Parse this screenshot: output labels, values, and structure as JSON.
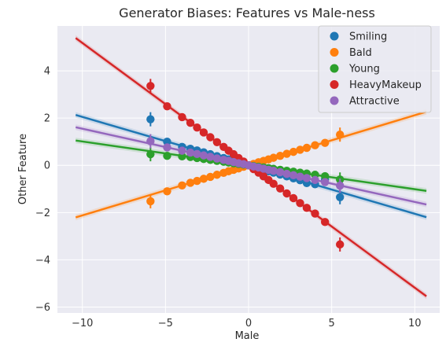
{
  "chart_data": {
    "type": "scatter",
    "title": "Generator Biases: Features vs Male-ness",
    "xlabel": "Male",
    "ylabel": "Other Feature",
    "xlim": [
      -11.5,
      11.5
    ],
    "ylim": [
      -6.25,
      5.9
    ],
    "xticks": [
      -10,
      -5,
      0,
      5,
      10
    ],
    "xtick_labels": [
      "−10",
      "−5",
      "0",
      "5",
      "10"
    ],
    "yticks": [
      -6,
      -4,
      -2,
      0,
      2,
      4
    ],
    "ytick_labels": [
      "−6",
      "−4",
      "−2",
      "0",
      "2",
      "4"
    ],
    "grid": true,
    "legend_position": "top-right",
    "x_points": [
      -5.9,
      -4.9,
      -4.0,
      -3.5,
      -3.1,
      -2.7,
      -2.3,
      -1.9,
      -1.5,
      -1.2,
      -0.9,
      -0.6,
      -0.3,
      0.0,
      0.3,
      0.6,
      0.9,
      1.2,
      1.5,
      1.9,
      2.3,
      2.7,
      3.1,
      3.5,
      4.0,
      4.6,
      5.5
    ],
    "series": [
      {
        "name": "Smiling",
        "color": "#1f77b4",
        "slope": -0.205,
        "line_x": [
          -10.4,
          10.7
        ],
        "y": [
          1.95,
          1.0,
          0.78,
          0.7,
          0.63,
          0.55,
          0.47,
          0.39,
          0.31,
          0.25,
          0.18,
          0.12,
          0.06,
          0.0,
          -0.06,
          -0.12,
          -0.18,
          -0.25,
          -0.31,
          -0.39,
          -0.47,
          -0.55,
          -0.63,
          -0.75,
          -0.8,
          -0.6,
          -1.35
        ]
      },
      {
        "name": "Bald",
        "color": "#ff7f0e",
        "slope": 0.212,
        "line_x": [
          -10.4,
          10.7
        ],
        "y": [
          -1.52,
          -1.1,
          -0.85,
          -0.74,
          -0.66,
          -0.57,
          -0.49,
          -0.4,
          -0.32,
          -0.25,
          -0.19,
          -0.13,
          -0.06,
          0.0,
          0.06,
          0.13,
          0.19,
          0.25,
          0.32,
          0.4,
          0.49,
          0.57,
          0.66,
          0.74,
          0.85,
          0.95,
          1.3
        ]
      },
      {
        "name": "Young",
        "color": "#2ca02c",
        "slope": -0.101,
        "line_x": [
          -10.4,
          10.7
        ],
        "y": [
          0.47,
          0.4,
          0.38,
          0.35,
          0.31,
          0.27,
          0.23,
          0.19,
          0.15,
          0.12,
          0.09,
          0.06,
          0.03,
          0.0,
          -0.03,
          -0.06,
          -0.09,
          -0.12,
          -0.15,
          -0.19,
          -0.23,
          -0.27,
          -0.31,
          -0.35,
          -0.4,
          -0.46,
          -0.6
        ]
      },
      {
        "name": "HeavyMakeup",
        "color": "#d62728",
        "slope": -0.518,
        "line_x": [
          -10.4,
          10.7
        ],
        "y": [
          3.36,
          2.5,
          2.04,
          1.8,
          1.6,
          1.39,
          1.19,
          0.98,
          0.78,
          0.62,
          0.47,
          0.31,
          0.16,
          0.0,
          -0.16,
          -0.31,
          -0.47,
          -0.62,
          -0.78,
          -0.98,
          -1.19,
          -1.39,
          -1.6,
          -1.8,
          -2.04,
          -2.4,
          -3.35
        ]
      },
      {
        "name": "Attractive",
        "color": "#9467bd",
        "slope": -0.155,
        "line_x": [
          -10.4,
          10.7
        ],
        "y": [
          1.02,
          0.76,
          0.62,
          0.54,
          0.48,
          0.42,
          0.36,
          0.29,
          0.23,
          0.19,
          0.14,
          0.09,
          0.05,
          0.0,
          -0.05,
          -0.09,
          -0.14,
          -0.19,
          -0.23,
          -0.29,
          -0.36,
          -0.42,
          -0.48,
          -0.54,
          -0.62,
          -0.71,
          -0.86
        ]
      }
    ]
  }
}
